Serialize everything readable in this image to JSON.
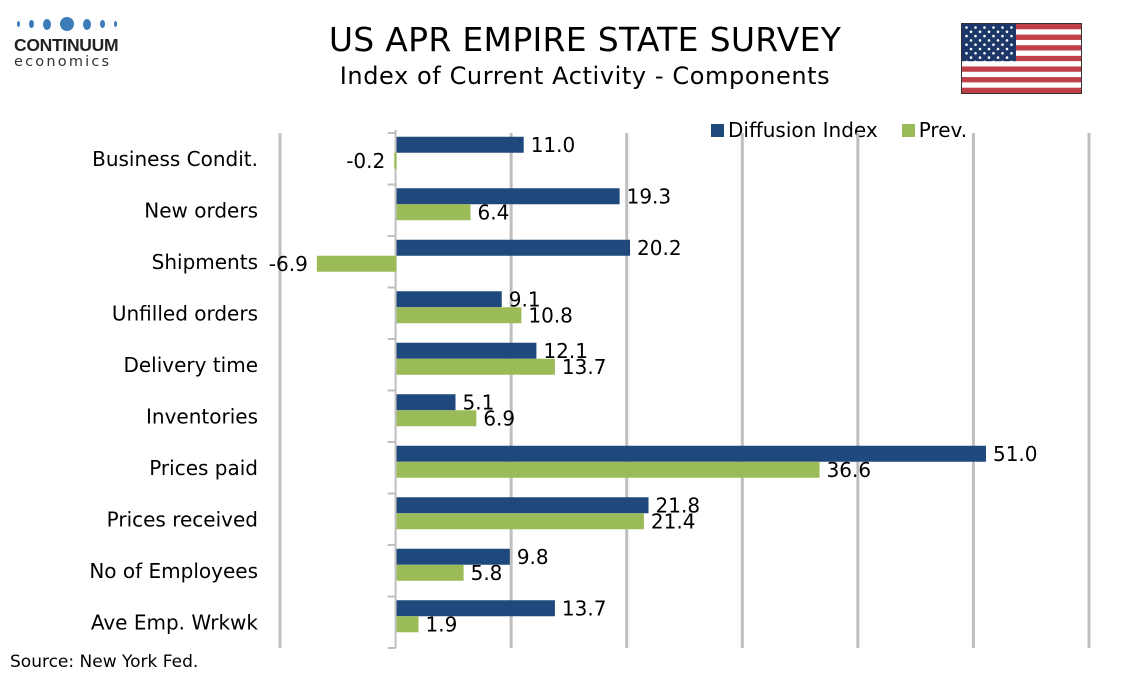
{
  "header": {
    "title": "US APR EMPIRE STATE SURVEY",
    "subtitle": "Index of Current Activity - Components"
  },
  "logo": {
    "brand": "CONTINUUM",
    "tagline": "economics",
    "color": "#3a7bb8"
  },
  "flag_icon": "us-flag-icon",
  "footer": {
    "source": "Source: New York Fed."
  },
  "chart_data": {
    "type": "bar",
    "orientation": "horizontal",
    "title": "US APR EMPIRE STATE SURVEY",
    "subtitle": "Index of Current Activity - Components",
    "xlabel": "",
    "ylabel": "",
    "xlim": [
      -10,
      60
    ],
    "grid_step": 10,
    "grid": true,
    "legend_position": "top-right",
    "categories": [
      "Business Condit.",
      "New orders ",
      "Shipments",
      "Unfilled orders",
      "Delivery time",
      "Inventories",
      "Prices paid",
      "Prices received",
      "No of Employees",
      "Ave Emp. Wrkwk"
    ],
    "series": [
      {
        "name": "Diffusion Index",
        "color": "#1f497d",
        "values": [
          11.0,
          19.3,
          20.2,
          9.1,
          12.1,
          5.1,
          51.0,
          21.8,
          9.8,
          13.7
        ]
      },
      {
        "name": "Prev.",
        "color": "#9bbb59",
        "values": [
          -0.2,
          6.4,
          -6.9,
          10.8,
          13.7,
          6.9,
          36.6,
          21.4,
          5.8,
          1.9
        ]
      }
    ]
  }
}
